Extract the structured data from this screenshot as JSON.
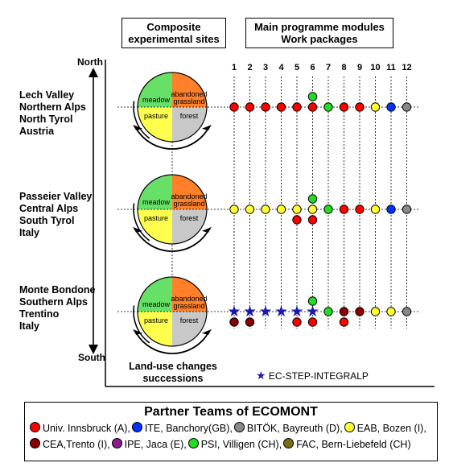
{
  "headers": {
    "sites": "Composite\nexperimental sites",
    "modules": "Main programme modules\nWork packages"
  },
  "axis": {
    "north": "North",
    "south": "South"
  },
  "module_numbers": [
    "1",
    "2",
    "3",
    "4",
    "5",
    "6",
    "7",
    "8",
    "9",
    "10",
    "11",
    "12"
  ],
  "sites": [
    {
      "label": "Lech Valley\nNorthern Alps\nNorth Tyrol\nAustria"
    },
    {
      "label": "Passeier Valley\nCentral Alps\nSouth Tyrol\nItaly"
    },
    {
      "label": "Monte Bondone\nSouthern Alps\nTrentino\nItaly"
    }
  ],
  "quadrants": {
    "meadow": "meadow",
    "abandoned": "abandoned\ngrassland",
    "pasture": "pasture",
    "forest": "forest"
  },
  "quadrant_colors": {
    "meadow": "#66e066",
    "abandoned": "#ff7f2a",
    "pasture": "#ffff4d",
    "forest": "#c8c8c8"
  },
  "land_use_caption": "Land-use changes\nsuccessions",
  "ec_step_label": "EC-STEP-INTEGRALP",
  "colors": {
    "innsbruck": "#ff0000",
    "ite": "#0033ff",
    "bitok": "#888888",
    "eab": "#ffff33",
    "cea": "#8b0000",
    "ipe": "#8b1a8b",
    "psi": "#22dd22",
    "fac": "#7a6a1a",
    "star": "#1a1aaa"
  },
  "rows": [
    {
      "main": [
        "innsbruck",
        "innsbruck",
        "innsbruck",
        "innsbruck",
        "innsbruck",
        "innsbruck",
        "psi",
        "innsbruck",
        "innsbruck",
        "eab",
        "ite",
        "bitok"
      ],
      "above": [
        {
          "col": 6,
          "color": "psi"
        }
      ],
      "below": []
    },
    {
      "main": [
        "eab",
        "eab",
        "eab",
        "eab",
        "eab",
        "eab",
        "psi",
        "innsbruck",
        "innsbruck",
        "eab",
        "ite",
        "bitok"
      ],
      "above": [
        {
          "col": 6,
          "color": "psi"
        }
      ],
      "below": [
        {
          "col": 5,
          "color": "innsbruck"
        },
        {
          "col": 6,
          "color": "innsbruck"
        }
      ]
    },
    {
      "main": [
        "star",
        "star",
        "star",
        "star",
        "star",
        "star",
        "psi",
        "cea",
        "cea",
        "eab",
        "eab",
        "bitok"
      ],
      "above": [
        {
          "col": 6,
          "color": "psi"
        }
      ],
      "below": [
        {
          "col": 1,
          "color": "cea"
        },
        {
          "col": 2,
          "color": "cea"
        },
        {
          "col": 5,
          "color": "innsbruck"
        },
        {
          "col": 6,
          "color": "innsbruck"
        },
        {
          "col": 8,
          "color": "innsbruck"
        }
      ]
    }
  ],
  "partners": {
    "title": "Partner Teams of ECOMONT",
    "row1": [
      {
        "label": "Univ. Innsbruck (A),",
        "color": "innsbruck"
      },
      {
        "label": "ITE, Banchory(GB),",
        "color": "ite"
      },
      {
        "label": "BITÖK, Bayreuth (D),",
        "color": "bitok"
      },
      {
        "label": "EAB, Bozen (I),",
        "color": "eab"
      }
    ],
    "row2": [
      {
        "label": "CEA,Trento (I),",
        "color": "cea"
      },
      {
        "label": "IPE, Jaca (E),",
        "color": "ipe"
      },
      {
        "label": "PSI, Villigen (CH),",
        "color": "psi"
      },
      {
        "label": "FAC, Bern-Liebefeld (CH)",
        "color": "fac"
      }
    ]
  }
}
